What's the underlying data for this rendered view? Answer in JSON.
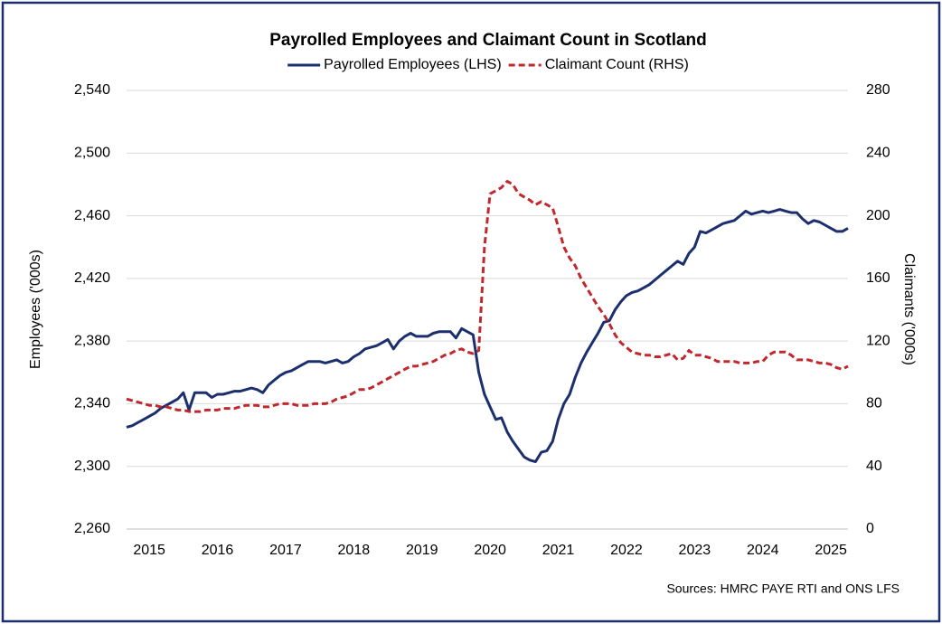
{
  "chart_data": {
    "type": "line",
    "title": "Payrolled Employees and Claimant Count in Scotland",
    "y_label": "Employees ('000s)",
    "y2_label": "Claimants ('000s)",
    "source": "Sources: HMRC PAYE RTI and ONS LFS",
    "categories": [
      null,
      null,
      null,
      null,
      "2015",
      null,
      null,
      null,
      null,
      null,
      null,
      null,
      null,
      null,
      null,
      null,
      "2016",
      null,
      null,
      null,
      null,
      null,
      null,
      null,
      null,
      null,
      null,
      null,
      "2017",
      null,
      null,
      null,
      null,
      null,
      null,
      null,
      null,
      null,
      null,
      null,
      "2018",
      null,
      null,
      null,
      null,
      null,
      null,
      null,
      null,
      null,
      null,
      null,
      "2019",
      null,
      null,
      null,
      null,
      null,
      null,
      null,
      null,
      null,
      null,
      null,
      "2020",
      null,
      null,
      null,
      null,
      null,
      null,
      null,
      null,
      null,
      null,
      null,
      "2021",
      null,
      null,
      null,
      null,
      null,
      null,
      null,
      null,
      null,
      null,
      null,
      "2022",
      null,
      null,
      null,
      null,
      null,
      null,
      null,
      null,
      null,
      null,
      null,
      "2023",
      null,
      null,
      null,
      null,
      null,
      null,
      null,
      null,
      null,
      null,
      null,
      "2024",
      null,
      null,
      null,
      null,
      null,
      null,
      null,
      null,
      null,
      null,
      null,
      "2025",
      null,
      null,
      null
    ],
    "series": [
      {
        "name": "Payrolled Employees (LHS)",
        "color": "#1b2f6e",
        "dash": false,
        "values": [
          2325,
          2326,
          2328,
          2330,
          2332,
          2334,
          2337,
          2339,
          2341,
          2343,
          2347,
          2336,
          2347,
          2347,
          2347,
          2344,
          2346,
          2346,
          2347,
          2348,
          2348,
          2349,
          2350,
          2349,
          2347,
          2352,
          2355,
          2358,
          2360,
          2361,
          2363,
          2365,
          2367,
          2367,
          2367,
          2366,
          2367,
          2368,
          2366,
          2367,
          2370,
          2372,
          2375,
          2376,
          2377,
          2379,
          2381,
          2375,
          2380,
          2383,
          2385,
          2383,
          2383,
          2383,
          2385,
          2386,
          2386,
          2386,
          2382,
          2388,
          2386,
          2384,
          2360,
          2346,
          2338,
          2330,
          2331,
          2322,
          2316,
          2311,
          2306,
          2304,
          2303,
          2309,
          2310,
          2316,
          2330,
          2340,
          2346,
          2357,
          2366,
          2373,
          2379,
          2385,
          2392,
          2393,
          2400,
          2405,
          2409,
          2411,
          2412,
          2414,
          2416,
          2419,
          2422,
          2425,
          2428,
          2431,
          2429,
          2436,
          2440,
          2450,
          2449,
          2451,
          2453,
          2455,
          2456,
          2457,
          2460,
          2463,
          2461,
          2462,
          2463,
          2462,
          2463,
          2464,
          2463,
          2462,
          2462,
          2458,
          2455,
          2457,
          2456,
          2454,
          2452,
          2450,
          2450,
          2452
        ]
      },
      {
        "name": "Claimant Count (RHS)",
        "color": "#c0282d",
        "dash": true,
        "axis": "y2",
        "values": [
          83,
          82,
          81,
          80,
          79,
          79,
          78,
          78,
          77,
          76,
          76,
          75,
          75,
          75,
          76,
          76,
          76,
          77,
          77,
          77,
          78,
          79,
          79,
          79,
          78,
          78,
          79,
          80,
          80,
          80,
          79,
          79,
          79,
          80,
          80,
          80,
          81,
          83,
          84,
          85,
          87,
          89,
          89,
          90,
          92,
          94,
          96,
          98,
          100,
          102,
          104,
          104,
          105,
          106,
          107,
          109,
          111,
          112,
          114,
          115,
          113,
          112,
          114,
          180,
          214,
          216,
          218,
          222,
          220,
          214,
          212,
          210,
          207,
          209,
          207,
          205,
          193,
          180,
          173,
          168,
          160,
          154,
          148,
          142,
          137,
          131,
          124,
          119,
          116,
          113,
          112,
          111,
          111,
          110,
          110,
          111,
          112,
          108,
          109,
          114,
          111,
          111,
          110,
          109,
          107,
          107,
          107,
          107,
          106,
          106,
          106,
          107,
          107,
          111,
          113,
          113,
          113,
          111,
          108,
          108,
          108,
          107,
          106,
          106,
          105,
          103,
          102,
          104
        ]
      }
    ],
    "ylim": [
      2260,
      2540
    ],
    "yticks": [
      {
        "value": 2260,
        "label": "2,260"
      },
      {
        "value": 2300,
        "label": "2,300"
      },
      {
        "value": 2340,
        "label": "2,340"
      },
      {
        "value": 2380,
        "label": "2,380"
      },
      {
        "value": 2420,
        "label": "2,420"
      },
      {
        "value": 2460,
        "label": "2,460"
      },
      {
        "value": 2500,
        "label": "2,500"
      },
      {
        "value": 2540,
        "label": "2,540"
      }
    ],
    "y2lim": [
      0,
      280
    ],
    "y2ticks": [
      0,
      40,
      80,
      120,
      160,
      200,
      240,
      280
    ],
    "grid": true,
    "legend": "top"
  }
}
